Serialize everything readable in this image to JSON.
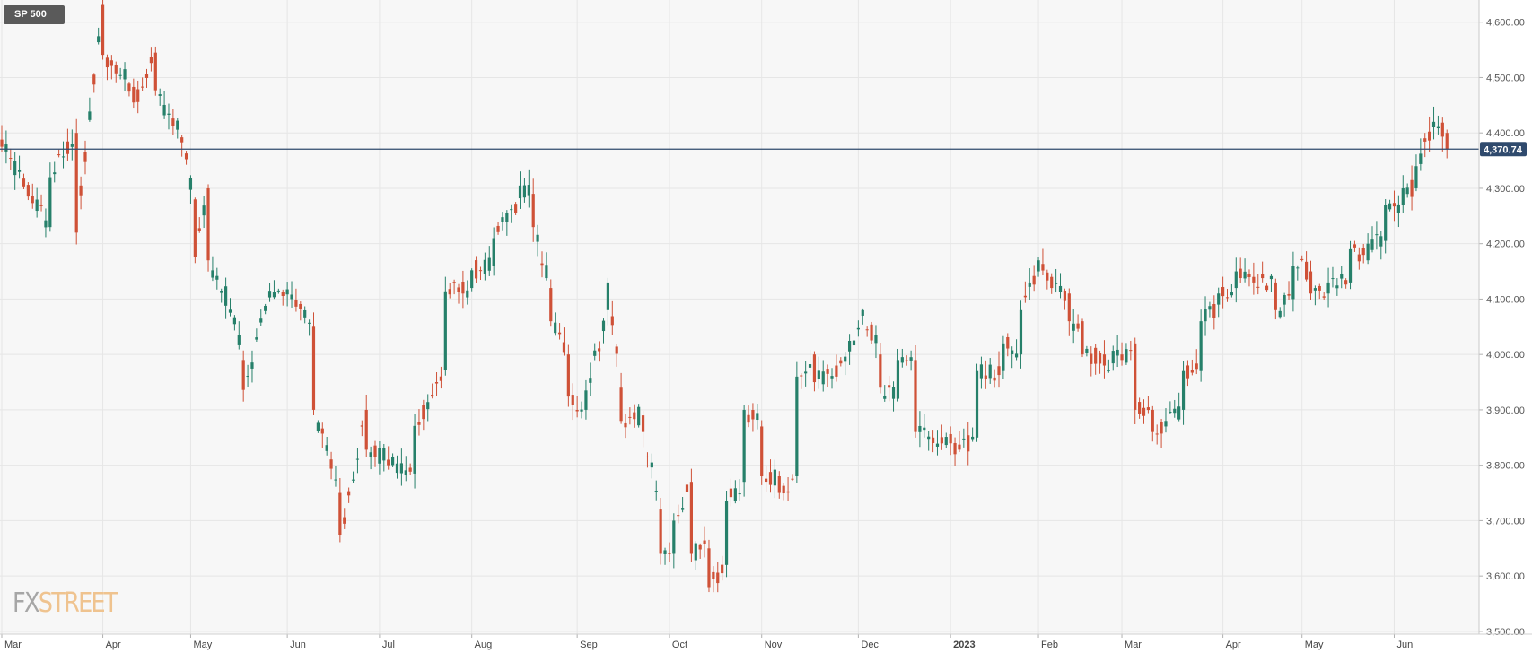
{
  "symbol": "SP 500",
  "logo": {
    "part1": "FX",
    "part2": "STREET"
  },
  "colors": {
    "up": "#26806a",
    "down": "#cf5137",
    "price_line": "#2f4a6d",
    "grid": "#e6e6e6",
    "plot_bg": "#f7f7f7"
  },
  "chart_data": {
    "type": "candlestick",
    "title": "SP 500",
    "period": "daily",
    "y_ticks": [
      3500,
      3600,
      3700,
      3800,
      3900,
      4000,
      4100,
      4200,
      4300,
      4400,
      4500,
      4600
    ],
    "y_tick_labels": [
      "3,500.00",
      "3,600.00",
      "3,700.00",
      "3,800.00",
      "3,900.00",
      "4,000.00",
      "4,100.00",
      "4,200.00",
      "4,300.00",
      "4,400.00",
      "4,500.00",
      "4,600.00"
    ],
    "ylim": [
      3495,
      4640
    ],
    "x_labels": [
      "Mar",
      "Apr",
      "May",
      "Jun",
      "Jul",
      "Aug",
      "Sep",
      "Oct",
      "Nov",
      "Dec",
      "2023",
      "Feb",
      "Mar",
      "Apr",
      "May",
      "Jun"
    ],
    "x_label_days": [
      0,
      23,
      43,
      65,
      86,
      107,
      131,
      152,
      173,
      195,
      216,
      236,
      255,
      278,
      296,
      317
    ],
    "last_price": 4370.74,
    "last_price_label": "4,370.74",
    "series": [
      {
        "name": "SP 500",
        "points": [
          [
            0,
            4388,
            4375
          ],
          [
            11,
            4230,
            4320
          ],
          [
            17,
            4400,
            4220
          ],
          [
            23,
            4631,
            4541
          ],
          [
            30,
            4483,
            4455
          ],
          [
            35,
            4545,
            4477
          ],
          [
            41,
            4392,
            4383
          ],
          [
            44,
            4280,
            4176
          ],
          [
            47,
            4300,
            4170
          ],
          [
            51,
            4088,
            4123
          ],
          [
            55,
            3990,
            3936
          ],
          [
            61,
            4103,
            4115
          ],
          [
            66,
            4100,
            4108
          ],
          [
            71,
            4050,
            3900
          ],
          [
            77,
            3750,
            3674
          ],
          [
            83,
            3900,
            3828
          ],
          [
            88,
            3810,
            3800
          ],
          [
            94,
            3785,
            3871
          ],
          [
            101,
            3972,
            4114
          ],
          [
            107,
            4120,
            4152
          ],
          [
            112,
            4160,
            4210
          ],
          [
            118,
            4282,
            4305
          ],
          [
            121,
            4290,
            4230
          ],
          [
            125,
            4120,
            4060
          ],
          [
            129,
            4000,
            3924
          ],
          [
            133,
            3900,
            3935
          ],
          [
            138,
            4080,
            4130
          ],
          [
            141,
            3940,
            3880
          ],
          [
            146,
            3890,
            3860
          ],
          [
            150,
            3720,
            3640
          ],
          [
            153,
            3640,
            3700
          ],
          [
            157,
            3770,
            3640
          ],
          [
            161,
            3650,
            3580
          ],
          [
            165,
            3620,
            3735
          ],
          [
            169,
            3770,
            3900
          ],
          [
            173,
            3870,
            3780
          ],
          [
            177,
            3780,
            3750
          ],
          [
            181,
            3780,
            3960
          ],
          [
            185,
            4000,
            3950
          ],
          [
            190,
            3980,
            3960
          ],
          [
            196,
            4070,
            4080
          ],
          [
            200,
            4000,
            3940
          ],
          [
            204,
            3920,
            3990
          ],
          [
            208,
            3990,
            3860
          ],
          [
            212,
            3850,
            3840
          ],
          [
            217,
            3840,
            3820
          ],
          [
            222,
            3850,
            3970
          ],
          [
            228,
            3970,
            4020
          ],
          [
            232,
            4000,
            4080
          ],
          [
            236,
            4150,
            4170
          ],
          [
            239,
            4140,
            4120
          ],
          [
            243,
            4110,
            4060
          ],
          [
            246,
            4060,
            4000
          ],
          [
            251,
            4000,
            3980
          ],
          [
            255,
            4000,
            3990
          ],
          [
            258,
            4020,
            3900
          ],
          [
            262,
            3900,
            3860
          ],
          [
            265,
            3870,
            3880
          ],
          [
            269,
            3900,
            3970
          ],
          [
            273,
            3970,
            4060
          ],
          [
            277,
            4090,
            4110
          ],
          [
            281,
            4120,
            4150
          ],
          [
            285,
            4140,
            4130
          ],
          [
            290,
            4130,
            4080
          ],
          [
            294,
            4100,
            4160
          ],
          [
            298,
            4150,
            4110
          ],
          [
            302,
            4110,
            4130
          ],
          [
            307,
            4130,
            4190
          ],
          [
            311,
            4170,
            4200
          ],
          [
            315,
            4205,
            4270
          ],
          [
            319,
            4270,
            4300
          ],
          [
            322,
            4300,
            4340
          ],
          [
            326,
            4410,
            4420
          ],
          [
            329,
            4400,
            4370.74
          ]
        ]
      }
    ]
  }
}
